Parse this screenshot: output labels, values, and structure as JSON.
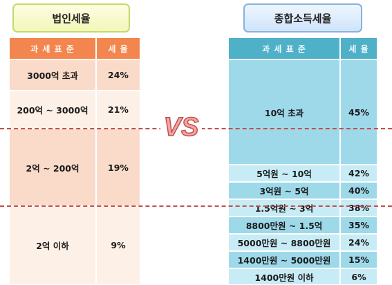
{
  "left_table": {
    "title": "법인세율",
    "header": {
      "base": "과 세 표 준",
      "rate": "세 율"
    },
    "rows": [
      {
        "base": "3000억 초과",
        "rate": "24%"
      },
      {
        "base": "200억 ~ 3000억",
        "rate": "21%"
      },
      {
        "base": "2억 ~ 200억",
        "rate": "19%"
      },
      {
        "base": "2억 이하",
        "rate": "9%"
      }
    ]
  },
  "right_table": {
    "title": "종합소득세율",
    "header": {
      "base": "과 세 표 준",
      "rate": "세 율"
    },
    "rows": [
      {
        "base": "10억 초과",
        "rate": "45%"
      },
      {
        "base": "5억원 ~ 10억",
        "rate": "42%"
      },
      {
        "base": "3억원 ~ 5억",
        "rate": "40%"
      },
      {
        "base": "1.5억원 ~ 3억",
        "rate": "38%"
      },
      {
        "base": "8800만원 ~ 1.5억",
        "rate": "35%"
      },
      {
        "base": "5000만원 ~ 8800만원",
        "rate": "24%"
      },
      {
        "base": "1400만원 ~ 5000만원",
        "rate": "15%"
      },
      {
        "base": "1400만원 이하",
        "rate": "6%"
      }
    ]
  },
  "vs_label": "VS",
  "colors": {
    "left_header": "#f2864e",
    "right_header": "#4fb1c8",
    "divider": "#c0504d"
  }
}
